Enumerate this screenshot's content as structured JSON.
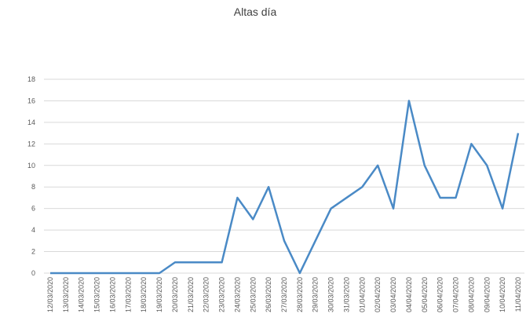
{
  "chart_data": {
    "type": "line",
    "title": "Altas día",
    "categories": [
      "12/03/2020",
      "13/03/2020",
      "14/03/2020",
      "15/03/2020",
      "16/03/2020",
      "17/03/2020",
      "18/03/2020",
      "19/03/2020",
      "20/03/2020",
      "21/03/2020",
      "22/03/2020",
      "23/03/2020",
      "24/03/2020",
      "25/03/2020",
      "26/03/2020",
      "27/03/2020",
      "28/03/2020",
      "29/03/2020",
      "30/03/2020",
      "31/03/2020",
      "01/04/2020",
      "02/04/2020",
      "03/04/2020",
      "04/04/2020",
      "05/04/2020",
      "06/04/2020",
      "07/04/2020",
      "08/04/2020",
      "09/04/2020",
      "10/04/2020",
      "11/04/2020"
    ],
    "values": [
      0,
      0,
      0,
      0,
      0,
      0,
      0,
      0,
      1,
      1,
      1,
      1,
      7,
      5,
      8,
      3,
      0,
      3,
      6,
      7,
      8,
      10,
      6,
      16,
      10,
      7,
      7,
      12,
      10,
      6,
      13
    ],
    "color": "#4a8ac6",
    "ylim": [
      0,
      18
    ],
    "yticks": [
      0,
      2,
      4,
      6,
      8,
      10,
      12,
      14,
      16,
      18
    ],
    "grid": true
  }
}
